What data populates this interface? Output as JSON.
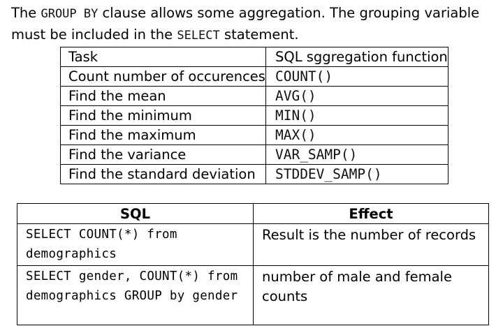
{
  "intro": {
    "part1": "The ",
    "code1": "GROUP BY",
    "part2": " clause allows some aggregation. The grouping variable must be included in the ",
    "code2": "SELECT",
    "part3": " statement."
  },
  "functions_table": {
    "headers": [
      "Task",
      "SQL sggregation function"
    ],
    "rows": [
      {
        "task": "Count number of occurences",
        "func": "COUNT()"
      },
      {
        "task": "Find the mean",
        "func": "AVG()"
      },
      {
        "task": "Find the minimum",
        "func": "MIN()"
      },
      {
        "task": "Find the maximum",
        "func": "MAX()"
      },
      {
        "task": "Find the variance",
        "func": "VAR_SAMP()"
      },
      {
        "task": "Find the standard deviation",
        "func": "STDDEV_SAMP()"
      }
    ]
  },
  "examples_table": {
    "headers": [
      "SQL",
      "Effect"
    ],
    "rows": [
      {
        "sql": "SELECT COUNT(*) from demographics",
        "effect": "Result is the number of records"
      },
      {
        "sql": "SELECT gender, COUNT(*) from demographics GROUP by gender",
        "effect": "number of male and female counts"
      }
    ]
  }
}
